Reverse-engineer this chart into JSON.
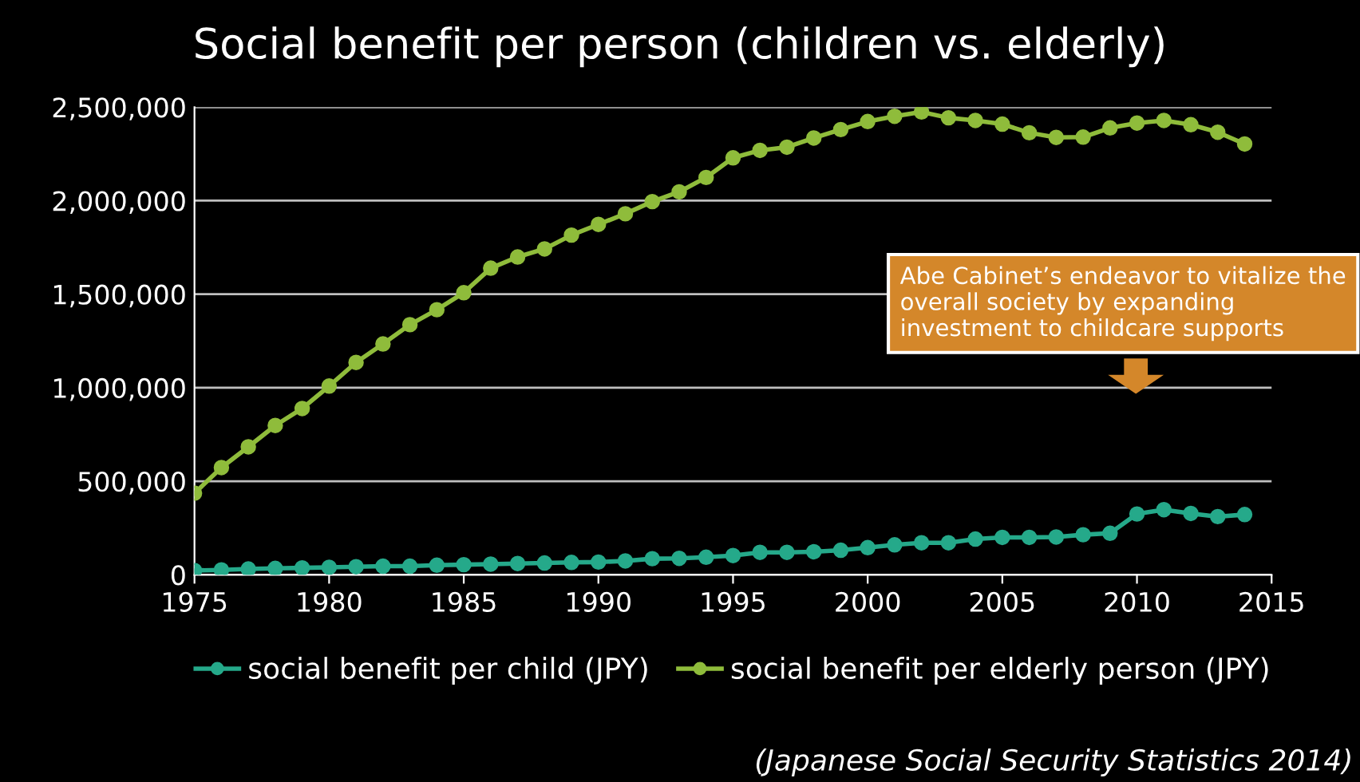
{
  "chart_data": {
    "type": "line",
    "title": "Social benefit per person (children vs. elderly)",
    "x": [
      1975,
      1976,
      1977,
      1978,
      1979,
      1980,
      1981,
      1982,
      1983,
      1984,
      1985,
      1986,
      1987,
      1988,
      1989,
      1990,
      1991,
      1992,
      1993,
      1994,
      1995,
      1996,
      1997,
      1998,
      1999,
      2000,
      2001,
      2002,
      2003,
      2004,
      2005,
      2006,
      2007,
      2008,
      2009,
      2010,
      2011,
      2012,
      2013,
      2014
    ],
    "series": [
      {
        "name": "social benefit per child (JPY)",
        "color": "#25a98a",
        "values": [
          23000,
          26000,
          31000,
          34000,
          37000,
          40000,
          43000,
          46000,
          46000,
          51000,
          54000,
          57000,
          60000,
          63000,
          66000,
          68000,
          74000,
          86000,
          88000,
          94000,
          103000,
          120000,
          120000,
          123000,
          131000,
          145000,
          160000,
          171000,
          171000,
          191000,
          200000,
          200000,
          202000,
          214000,
          222000,
          325000,
          348000,
          328000,
          311000,
          322000
        ]
      },
      {
        "name": "social benefit per elderly person (JPY)",
        "color": "#8fbc3b",
        "values": [
          436000,
          573000,
          684000,
          798000,
          889000,
          1009000,
          1135000,
          1234000,
          1337000,
          1417000,
          1508000,
          1639000,
          1699000,
          1742000,
          1816000,
          1873000,
          1930000,
          1995000,
          2047000,
          2124000,
          2229000,
          2269000,
          2286000,
          2335000,
          2380000,
          2423000,
          2451000,
          2474000,
          2443000,
          2429000,
          2409000,
          2363000,
          2338000,
          2340000,
          2389000,
          2415000,
          2429000,
          2406000,
          2366000,
          2303000
        ]
      }
    ],
    "xlim": [
      1975,
      2015
    ],
    "xticks": [
      1975,
      1980,
      1985,
      1990,
      1995,
      2000,
      2005,
      2010,
      2015
    ],
    "ylim": [
      0,
      2500000
    ],
    "yticks": [
      {
        "value": 0,
        "label": "0"
      },
      {
        "value": 500000,
        "label": "500,000"
      },
      {
        "value": 1000000,
        "label": "1,000,000"
      },
      {
        "value": 1500000,
        "label": "1,500,000"
      },
      {
        "value": 2000000,
        "label": "2,000,000"
      },
      {
        "value": 2500000,
        "label": "2,500,000"
      }
    ],
    "grid": "y",
    "legend": "bottom",
    "marker": "circle",
    "line_style": "solid",
    "annotations": [
      "Abe Cabinet’s endeavor to vitalize the overall society by expanding investment to childcare supports",
      "(Japanese Social Security Statistics 2014)"
    ]
  }
}
